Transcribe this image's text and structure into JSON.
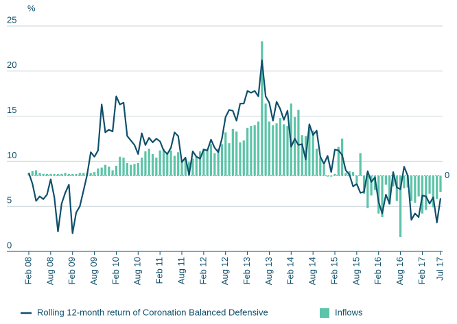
{
  "chart_data": {
    "type": "combo",
    "y_label": "%",
    "categories": [
      "Feb 08",
      null,
      null,
      null,
      null,
      null,
      "Aug 08",
      null,
      null,
      null,
      null,
      null,
      "Feb 09",
      null,
      null,
      null,
      null,
      null,
      "Aug 09",
      null,
      null,
      null,
      null,
      null,
      "Feb 10",
      null,
      null,
      null,
      null,
      null,
      "Aug 10",
      null,
      null,
      null,
      null,
      null,
      "Feb 11",
      null,
      null,
      null,
      null,
      null,
      "Aug 11",
      null,
      null,
      null,
      null,
      null,
      "Feb 12",
      null,
      null,
      null,
      null,
      null,
      "Aug 12",
      null,
      null,
      null,
      null,
      null,
      "Feb 13",
      null,
      null,
      null,
      null,
      null,
      "Aug 13",
      null,
      null,
      null,
      null,
      null,
      "Feb 14",
      null,
      null,
      null,
      null,
      null,
      "Aug 14",
      null,
      null,
      null,
      null,
      null,
      "Feb 15",
      null,
      null,
      null,
      null,
      null,
      "Aug 15",
      null,
      null,
      null,
      null,
      null,
      "Feb 16",
      null,
      null,
      null,
      null,
      null,
      "Aug 16",
      null,
      null,
      null,
      null,
      null,
      "Feb 17",
      null,
      null,
      null,
      null,
      "Jul 17"
    ],
    "series": [
      {
        "name": "Inflows",
        "type": "bar",
        "axis": "y2",
        "color": "#5cc4a8",
        "values": [
          0.3,
          0.5,
          0.6,
          0.3,
          0.2,
          0.2,
          0.2,
          0.2,
          0.2,
          0.2,
          0.3,
          0.2,
          0.2,
          0.2,
          0.3,
          0.3,
          0.3,
          0.3,
          0.4,
          0.8,
          0.9,
          1.2,
          1.0,
          0.6,
          1.1,
          2.1,
          2.0,
          1.4,
          1.2,
          1.3,
          1.4,
          2.0,
          2.7,
          3.0,
          2.4,
          2.0,
          2.8,
          3.0,
          2.5,
          2.8,
          2.2,
          2.6,
          1.6,
          1.8,
          1.5,
          1.9,
          2.2,
          2.7,
          3.0,
          2.8,
          3.5,
          2.5,
          3.0,
          3.5,
          4.8,
          3.6,
          5.2,
          4.9,
          3.7,
          3.9,
          5.3,
          5.5,
          5.6,
          6.0,
          14.9,
          8.0,
          6.0,
          5.6,
          5.8,
          6.4,
          5.7,
          5.5,
          8.0,
          6.5,
          7.3,
          4.5,
          4.4,
          5.2,
          5.0,
          3.0,
          2.0,
          1.2,
          -0.1,
          -0.1,
          0.2,
          3.2,
          4.1,
          0.3,
          0.5,
          0.4,
          -0.8,
          2.5,
          -2.0,
          -3.6,
          -2.2,
          -1.6,
          -4.2,
          -4.6,
          -1.0,
          -3.2,
          -1.2,
          -2.8,
          -6.8,
          -1.4,
          -1.3,
          -2.8,
          -3.0,
          -2.3,
          -4.2,
          -3.8,
          -2.0,
          -3.5,
          -2.6,
          -1.8
        ]
      },
      {
        "name": "Rolling 12-month return of Coronation Balanced Defensive",
        "type": "line",
        "color": "#0e4f6b",
        "values": [
          8.7,
          7.5,
          5.6,
          6.1,
          5.8,
          6.3,
          8.0,
          6.0,
          2.2,
          5.3,
          6.5,
          7.4,
          2.0,
          4.3,
          5.0,
          6.7,
          8.5,
          11.0,
          10.5,
          11.2,
          16.3,
          13.2,
          13.5,
          13.3,
          17.2,
          16.3,
          16.5,
          12.8,
          12.3,
          11.8,
          10.8,
          13.1,
          11.8,
          12.6,
          12.1,
          12.5,
          12.2,
          11.2,
          10.8,
          11.5,
          13.2,
          12.8,
          9.9,
          10.4,
          8.5,
          11.1,
          10.5,
          10.3,
          11.3,
          11.2,
          12.4,
          11.5,
          11.0,
          12.5,
          14.9,
          15.7,
          15.6,
          14.5,
          16.4,
          16.4,
          17.8,
          17.6,
          17.8,
          17.2,
          21.2,
          17.2,
          16.5,
          14.5,
          16.6,
          15.8,
          14.6,
          15.6,
          11.6,
          12.5,
          11.8,
          11.9,
          10.2,
          14.1,
          12.9,
          13.4,
          10.5,
          9.7,
          10.6,
          8.8,
          11.3,
          11.2,
          10.7,
          9.0,
          8.5,
          7.2,
          7.5,
          6.5,
          6.6,
          8.9,
          7.7,
          8.2,
          5.5,
          4.2,
          6.3,
          5.3,
          8.8,
          7.1,
          6.9,
          9.4,
          8.4,
          3.5,
          4.2,
          3.8,
          6.2,
          6.1,
          5.3,
          6.0,
          3.2,
          5.9
        ]
      }
    ],
    "ylim": [
      0,
      25
    ],
    "yticks": [
      0,
      5,
      10,
      15,
      20,
      25
    ],
    "y2lim": [
      -8.4,
      16.6
    ],
    "y2ticks": [
      0
    ],
    "grid": true
  }
}
